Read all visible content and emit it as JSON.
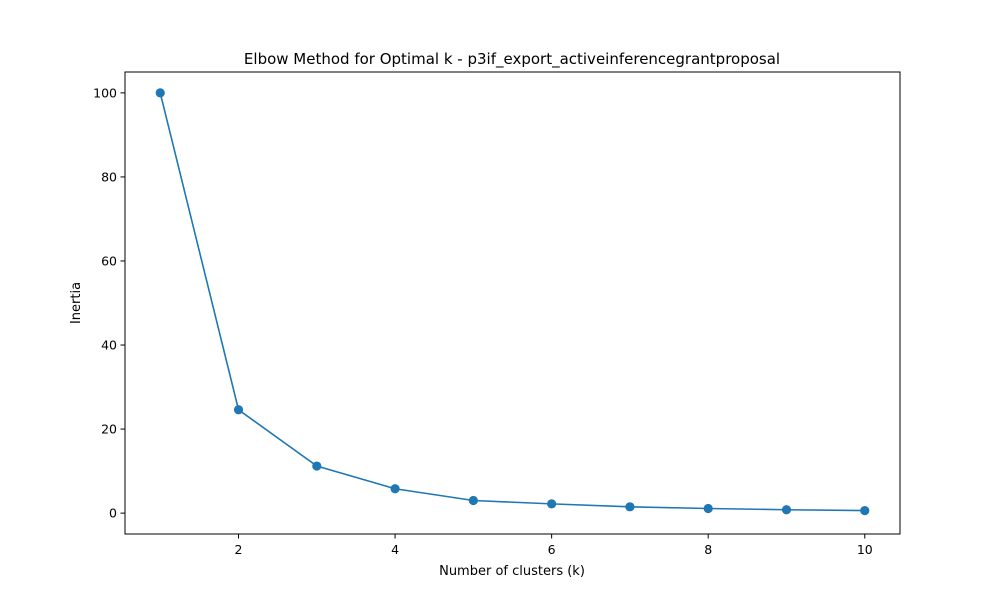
{
  "chart_data": {
    "type": "line",
    "title": "Elbow Method for Optimal k - p3if_export_activeinferencegrantproposal",
    "xlabel": "Number of clusters (k)",
    "ylabel": "Inertia",
    "x": [
      1,
      2,
      3,
      4,
      5,
      6,
      7,
      8,
      9,
      10
    ],
    "series": [
      {
        "values": [
          100.0,
          24.6,
          11.2,
          5.8,
          3.0,
          2.2,
          1.5,
          1.1,
          0.8,
          0.6
        ],
        "color": "#1f77b4",
        "marker": "circle"
      }
    ],
    "xlim": [
      0.55,
      10.45
    ],
    "ylim": [
      -4.97,
      104.97
    ],
    "xticks": [
      2,
      4,
      6,
      8,
      10
    ],
    "yticks": [
      0,
      20,
      40,
      60,
      80,
      100
    ],
    "xtick_labels": [
      "2",
      "4",
      "6",
      "8",
      "10"
    ],
    "ytick_labels": [
      "0",
      "20",
      "40",
      "60",
      "80",
      "100"
    ],
    "grid": false,
    "legend": "none"
  }
}
